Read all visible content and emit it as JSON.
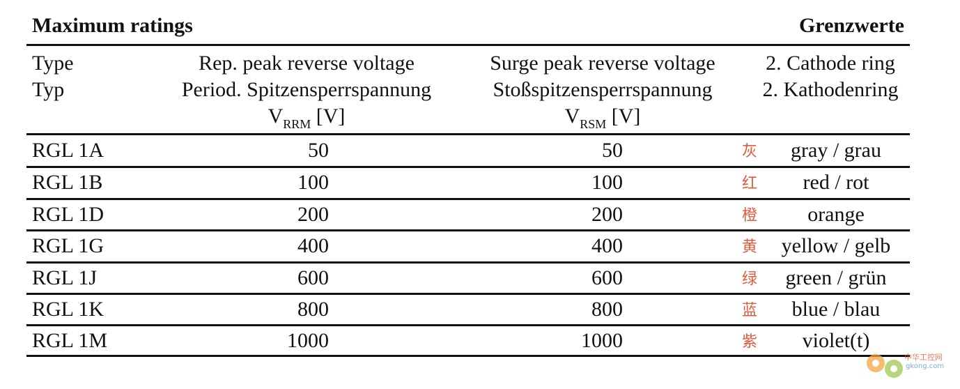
{
  "headings": {
    "left": "Maximum ratings",
    "right": "Grenzwerte"
  },
  "columns": {
    "type": {
      "line1": "Type",
      "line2": "Typ"
    },
    "vrrm": {
      "line1": "Rep. peak reverse voltage",
      "line2": "Period. Spitzensperrspannung",
      "symbol": "V",
      "subscript": "RRM",
      "unit": " [V]"
    },
    "vrsm": {
      "line1": "Surge peak reverse voltage",
      "line2": "Stoßspitzensperrspannung",
      "symbol": "V",
      "subscript": "RSM",
      "unit": " [V]"
    },
    "ring": {
      "line1": "2. Cathode ring",
      "line2": "2. Kathodenring"
    }
  },
  "rows": [
    {
      "type": "RGL 1A",
      "vrrm": "50",
      "vrsm": "50",
      "cn": "灰",
      "color": "gray  / grau"
    },
    {
      "type": "RGL 1B",
      "vrrm": "100",
      "vrsm": "100",
      "cn": "红",
      "color": "red  / rot"
    },
    {
      "type": "RGL 1D",
      "vrrm": "200",
      "vrsm": "200",
      "cn": "橙",
      "color": "orange"
    },
    {
      "type": "RGL 1G",
      "vrrm": "400",
      "vrsm": "400",
      "cn": "黄",
      "color": "yellow  / gelb"
    },
    {
      "type": "RGL 1J",
      "vrrm": "600",
      "vrsm": "600",
      "cn": "绿",
      "color": "green  / grün"
    },
    {
      "type": "RGL 1K",
      "vrrm": "800",
      "vrsm": "800",
      "cn": "蓝",
      "color": "blue  / blau"
    },
    {
      "type": "RGL 1M",
      "vrrm": "1000",
      "vrsm": "1000",
      "cn": "紫",
      "color": "violet(t)"
    }
  ],
  "watermark": {
    "text": "中华工控网",
    "url": "gkong.com"
  }
}
